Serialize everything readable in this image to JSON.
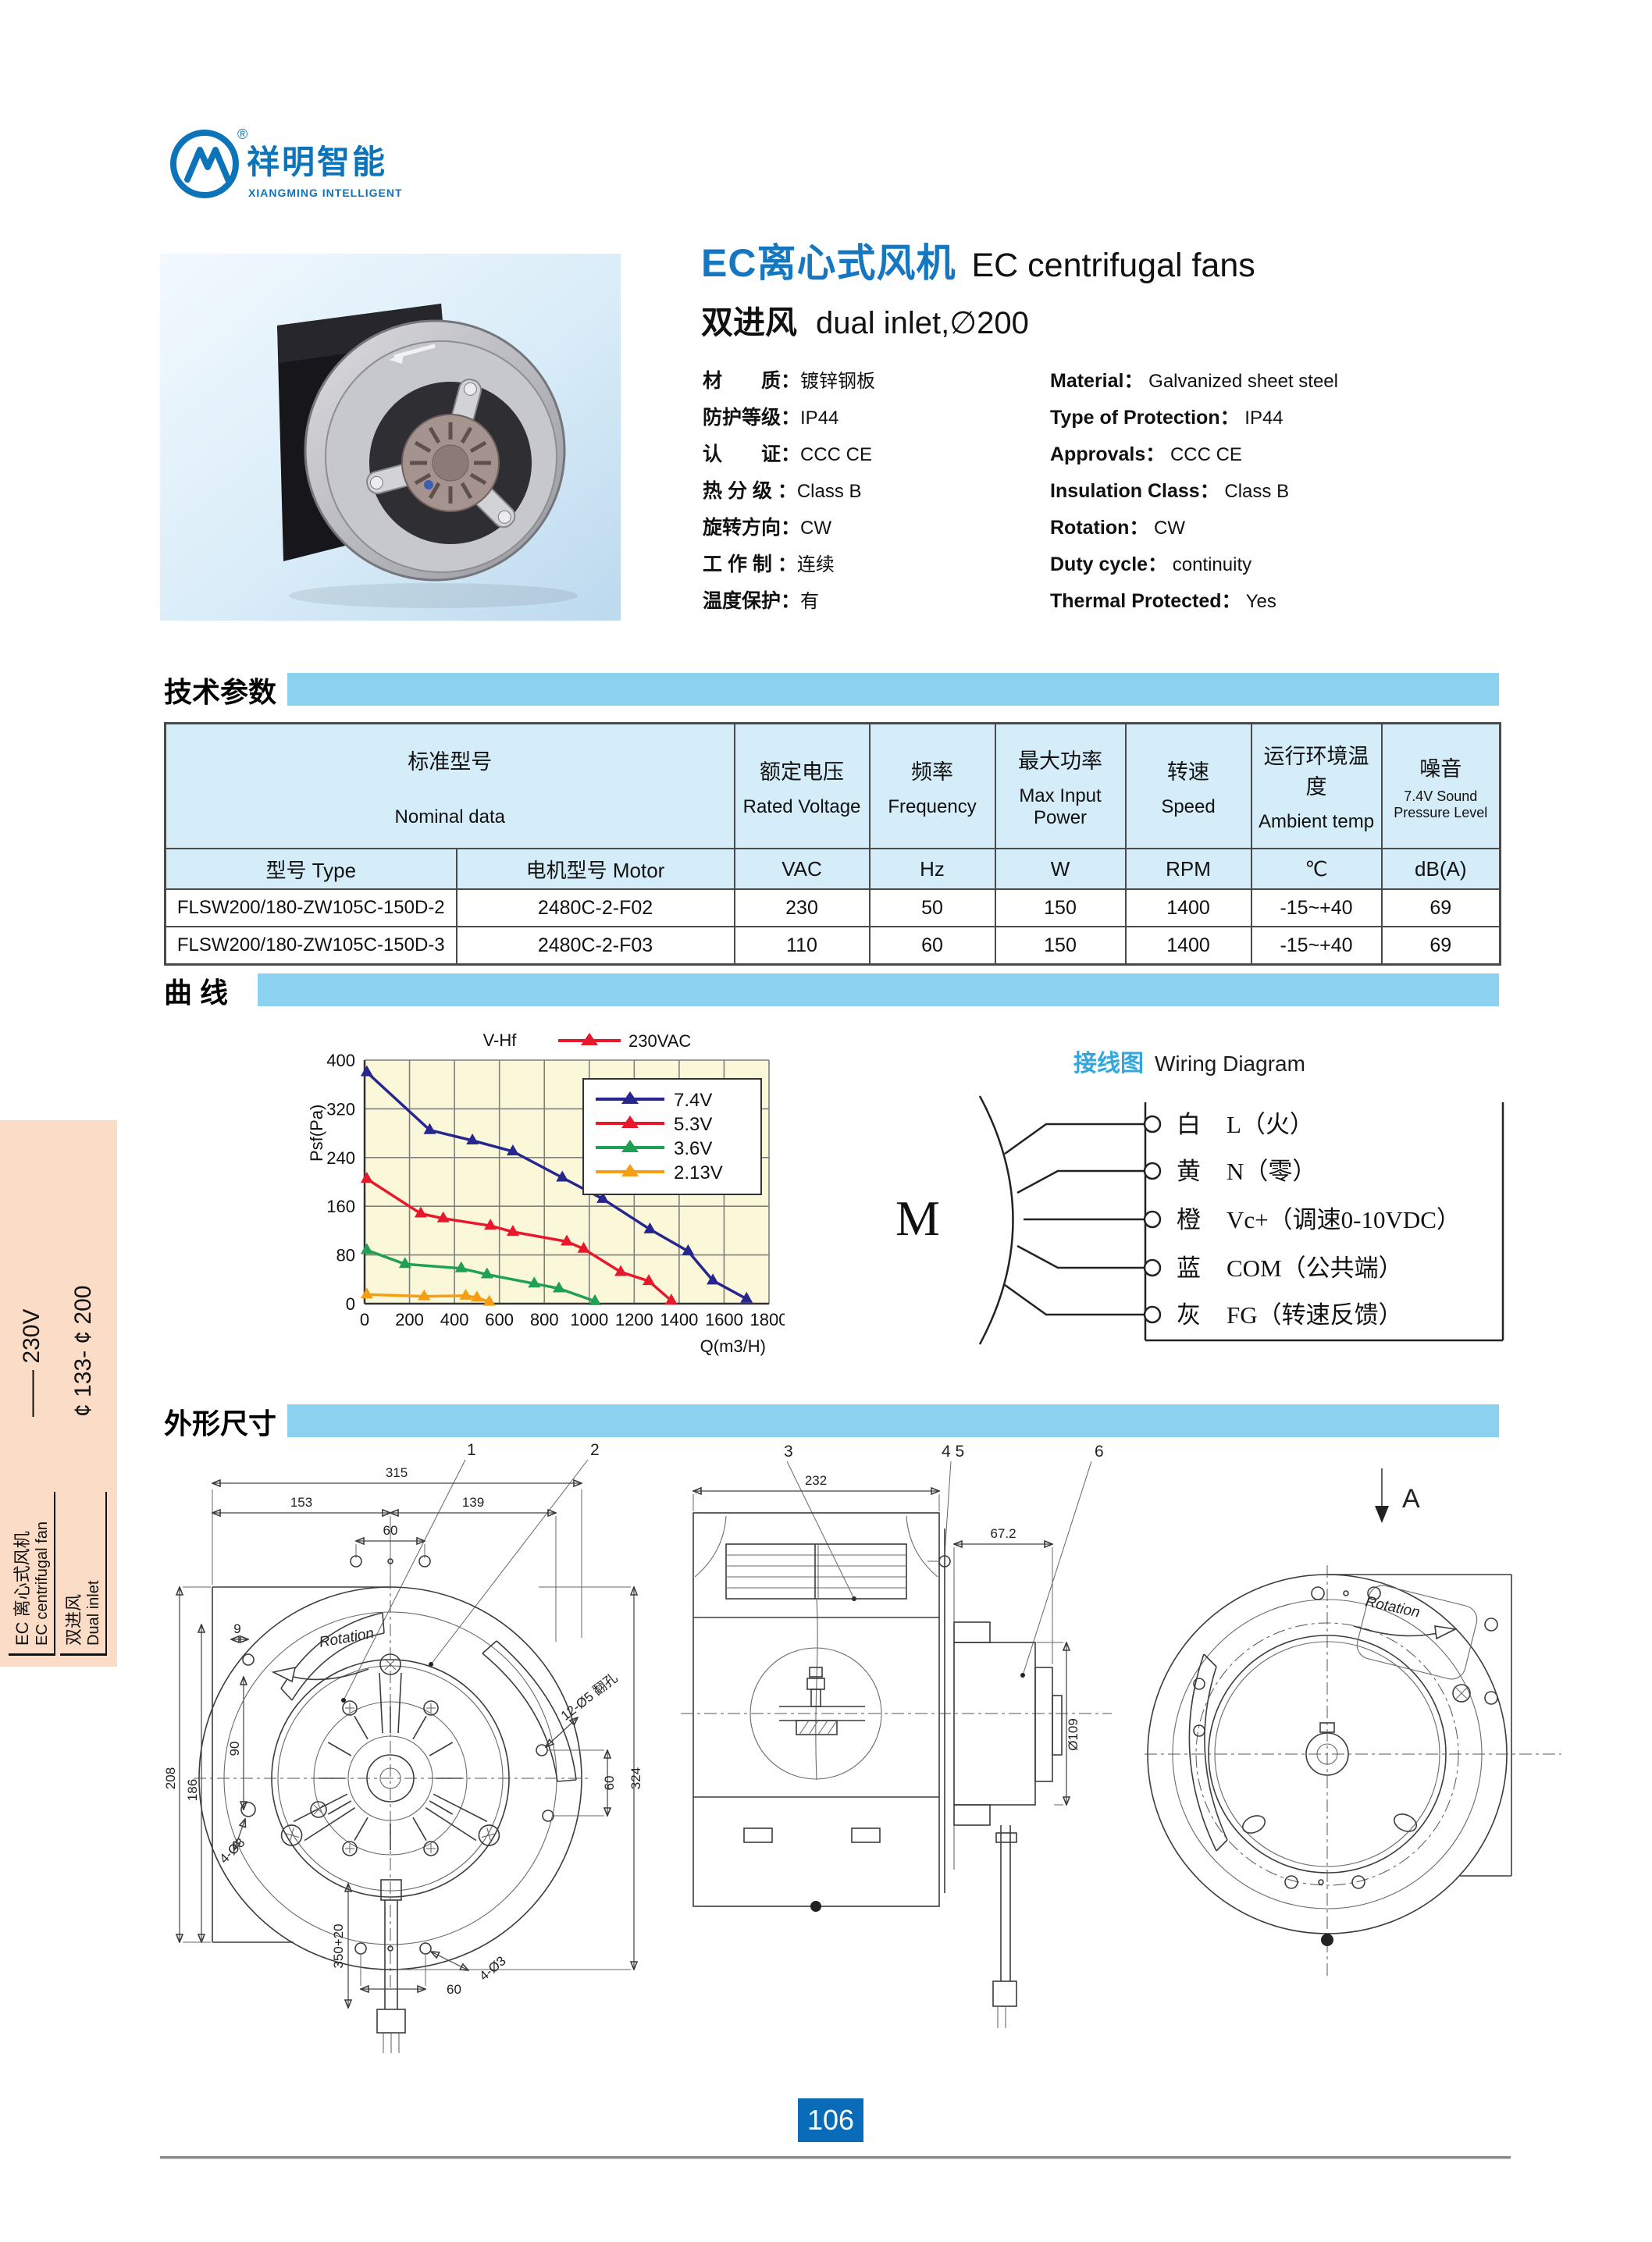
{
  "page": {
    "number": "106"
  },
  "brand": {
    "logo_zh": "祥明智能",
    "logo_en": "XIANGMING INTELLIGENT",
    "reg_mark": "®",
    "accent": "#0e74ba"
  },
  "header": {
    "title_zh": "EC离心式风机",
    "title_en": "EC centrifugal fans",
    "subtitle_zh": "双进风",
    "subtitle_en": "dual inlet,∅200"
  },
  "specs": [
    {
      "zh": "材　　质：",
      "zh_v": "镀锌钢板",
      "en": "Material：",
      "en_v": "Galvanized sheet steel"
    },
    {
      "zh": "防护等级：",
      "zh_v": "IP44",
      "en": "Type of Protection：",
      "en_v": "IP44"
    },
    {
      "zh": "认　　证：",
      "zh_v": "CCC CE",
      "en": "Approvals：",
      "en_v": "CCC CE"
    },
    {
      "zh": "热 分 级 ：",
      "zh_v": "Class B",
      "en": "Insulation Class：",
      "en_v": "Class B"
    },
    {
      "zh": "旋转方向：",
      "zh_v": "CW",
      "en": "Rotation：",
      "en_v": "CW"
    },
    {
      "zh": "工 作 制 ：",
      "zh_v": "连续",
      "en": "Duty cycle：",
      "en_v": "continuity"
    },
    {
      "zh": "温度保护：",
      "zh_v": "有",
      "en": "Thermal Protected：",
      "en_v": "Yes"
    }
  ],
  "sections": {
    "tech": "技术参数",
    "curve": "曲  线",
    "dims": "外形尺寸"
  },
  "table": {
    "group_zh": "标准型号",
    "group_en": "Nominal data",
    "cols": [
      {
        "zh": "额定电压",
        "en": "Rated Voltage",
        "unit": "VAC"
      },
      {
        "zh": "频率",
        "en": "Frequency",
        "unit": "Hz"
      },
      {
        "zh": "最大功率",
        "en": "Max Input Power",
        "unit": "W"
      },
      {
        "zh": "转速",
        "en": "Speed",
        "unit": "RPM"
      },
      {
        "zh": "运行环境温度",
        "en": "Ambient temp",
        "unit": "℃"
      },
      {
        "zh": "噪音",
        "en": "7.4V Sound Pressure Level",
        "unit": "dB(A)"
      }
    ],
    "type_header": "型号 Type",
    "motor_header": "电机型号 Motor",
    "rows": [
      {
        "type": "FLSW200/180-ZW105C-150D-2",
        "motor": "2480C-2-F02",
        "vac": "230",
        "hz": "50",
        "w": "150",
        "rpm": "1400",
        "temp": "-15~+40",
        "db": "69"
      },
      {
        "type": "FLSW200/180-ZW105C-150D-3",
        "motor": "2480C-2-F03",
        "vac": "110",
        "hz": "60",
        "w": "150",
        "rpm": "1400",
        "temp": "-15~+40",
        "db": "69"
      }
    ]
  },
  "chart_data": {
    "type": "line",
    "title": "V-Hf",
    "top_legend": {
      "label": "230VAC",
      "color": "#e8182c"
    },
    "xlabel": "Q(m3/H)",
    "ylabel": "Psf(Pa)",
    "xlim": [
      0,
      1800
    ],
    "ylim": [
      0,
      400
    ],
    "xstep": 200,
    "ystep": 80,
    "grid": true,
    "legend_position": "top-right",
    "plot_bg": "#fbf8da",
    "series": [
      {
        "name": "7.4V",
        "color": "#26268f",
        "points": [
          [
            10,
            380
          ],
          [
            290,
            285
          ],
          [
            480,
            268
          ],
          [
            660,
            250
          ],
          [
            880,
            207
          ],
          [
            1060,
            172
          ],
          [
            1270,
            122
          ],
          [
            1440,
            86
          ],
          [
            1550,
            38
          ],
          [
            1700,
            8
          ]
        ]
      },
      {
        "name": "5.3V",
        "color": "#e8182c",
        "points": [
          [
            10,
            205
          ],
          [
            250,
            148
          ],
          [
            350,
            140
          ],
          [
            560,
            128
          ],
          [
            660,
            118
          ],
          [
            900,
            102
          ],
          [
            975,
            90
          ],
          [
            1140,
            52
          ],
          [
            1265,
            37
          ],
          [
            1365,
            5
          ]
        ]
      },
      {
        "name": "3.6V",
        "color": "#1fa054",
        "points": [
          [
            10,
            88
          ],
          [
            180,
            65
          ],
          [
            430,
            58
          ],
          [
            545,
            48
          ],
          [
            755,
            33
          ],
          [
            865,
            25
          ],
          [
            1025,
            4
          ]
        ]
      },
      {
        "name": "2.13V",
        "color": "#f59d13",
        "points": [
          [
            10,
            15
          ],
          [
            265,
            12
          ],
          [
            450,
            13
          ],
          [
            500,
            10
          ],
          [
            555,
            3
          ]
        ]
      }
    ]
  },
  "wiring": {
    "title_zh": "接线图",
    "title_en": "Wiring Diagram",
    "motor_label": "M",
    "wires": [
      {
        "color": "白",
        "label": "L（火）"
      },
      {
        "color": "黄",
        "label": "N（零）"
      },
      {
        "color": "橙",
        "label": "Vc+（调速0-10VDC）"
      },
      {
        "color": "蓝",
        "label": "COM（公共端）"
      },
      {
        "color": "灰",
        "label": "FG（转速反馈）"
      }
    ]
  },
  "drawings": {
    "front": {
      "callout_1": "1",
      "callout_2": "2",
      "rotation": "Rotation",
      "dim_315": "315",
      "dim_153": "153",
      "dim_139": "139",
      "dim_60_top": "60",
      "dim_9": "9",
      "dim_208": "208",
      "dim_186": "186",
      "dim_90": "90",
      "dim_4d8": "4-Ø8",
      "dim_12d5": "12-Ø5 翻孔",
      "dim_324": "324",
      "dim_60_right": "60",
      "dim_350": "350+20",
      "dim_60_bottom": "60",
      "dim_4d3": "4-Ø3"
    },
    "side": {
      "callout_3": "3",
      "callout_45": "4 5",
      "callout_6": "6",
      "dim_232": "232",
      "dim_67": "67.2",
      "dim_d109": "Ø109"
    },
    "rear": {
      "view_label": "A",
      "rotation": "Rotation"
    }
  },
  "sidebar": {
    "g1_zh": "EC 离心式风机",
    "g1_en": "EC centrifugal fan",
    "g1_val": "—— 230V",
    "g2_zh": "双进风",
    "g2_en": "Dual inlet",
    "g2_val": "¢ 133- ¢ 200",
    "bg": "#fbdcc6"
  }
}
